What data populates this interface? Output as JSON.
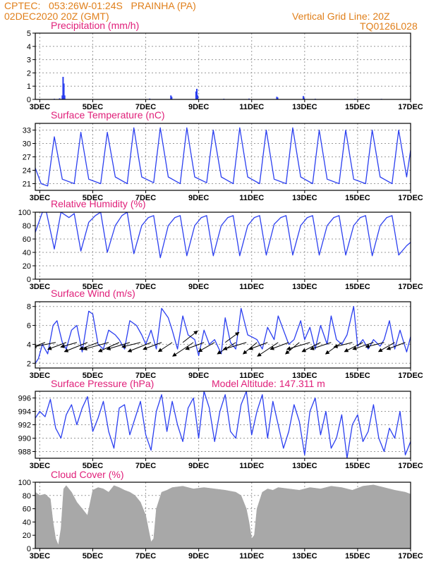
{
  "header": {
    "line1": "CPTEC:   053:26W-01:24S   PRAINHA (PA)",
    "line2": "02DEC2020 20Z (GMT)",
    "grid_note": "Vertical Grid Line: 20Z",
    "code": "TQ0126L028"
  },
  "colors": {
    "header": "#e07f1a",
    "title": "#e0207a",
    "series": "#2b3ff0",
    "cloud": "#a8a8a8",
    "wind_arrow": "#000000"
  },
  "chart_data": [
    {
      "id": "precip",
      "type": "bar",
      "title": "Precipitation (mm/h)",
      "xlabel": "",
      "ylabel": "mm/h",
      "ylim": [
        0,
        5
      ],
      "yticks": [
        0,
        1,
        2,
        3,
        4,
        5
      ],
      "xlim": [
        2.83,
        17.0
      ],
      "xticks": [
        3,
        5,
        7,
        9,
        11,
        13,
        15,
        17
      ],
      "xtick_labels": [
        "3DEC",
        "5DEC",
        "7DEC",
        "9DEC",
        "11DEC",
        "13DEC",
        "15DEC",
        "17DEC"
      ],
      "x": [
        3.55,
        3.75,
        3.85,
        3.88,
        3.91,
        3.94,
        7.15,
        7.95,
        7.98,
        8.9,
        8.93,
        8.96,
        9.95,
        10.9,
        11.95,
        11.98,
        12.95,
        12.98,
        13.4,
        14.9,
        15.9
      ],
      "values": [
        0.05,
        0.08,
        0.3,
        1.7,
        1.2,
        0.3,
        0.06,
        0.3,
        0.2,
        0.6,
        0.8,
        0.3,
        0.05,
        0.06,
        0.2,
        0.15,
        0.25,
        0.1,
        0.05,
        0.05,
        0.04
      ]
    },
    {
      "id": "temp",
      "type": "line",
      "title": "Surface Temperature (nC)",
      "xlabel": "",
      "ylabel": "nC",
      "ylim": [
        19.5,
        34.5
      ],
      "yticks": [
        21,
        24,
        27,
        30,
        33
      ],
      "xlim": [
        2.83,
        17.0
      ],
      "xticks": [
        3,
        5,
        7,
        9,
        11,
        13,
        15,
        17
      ],
      "xtick_labels": [
        "3DEC",
        "5DEC",
        "7DEC",
        "9DEC",
        "11DEC",
        "13DEC",
        "15DEC",
        "17DEC"
      ],
      "x": [
        2.83,
        3.05,
        3.3,
        3.55,
        3.85,
        4.3,
        4.55,
        4.85,
        5.3,
        5.55,
        5.85,
        6.3,
        6.55,
        6.85,
        7.3,
        7.55,
        7.85,
        8.3,
        8.55,
        8.85,
        9.3,
        9.55,
        9.85,
        10.3,
        10.55,
        10.85,
        11.3,
        11.55,
        11.85,
        12.3,
        12.55,
        12.85,
        13.3,
        13.55,
        13.85,
        14.3,
        14.55,
        14.85,
        15.3,
        15.55,
        15.85,
        16.3,
        16.55,
        16.85,
        17.0
      ],
      "values": [
        24.5,
        21.0,
        20.5,
        31.5,
        22.0,
        21.0,
        32.5,
        22.0,
        21.0,
        32.5,
        22.5,
        21.0,
        33.5,
        22.5,
        21.2,
        33.5,
        22.5,
        21.0,
        33.5,
        22.5,
        21.2,
        33.0,
        22.5,
        21.0,
        33.5,
        22.5,
        21.0,
        33.0,
        22.0,
        21.0,
        33.5,
        22.5,
        21.0,
        33.0,
        22.0,
        21.0,
        33.0,
        22.0,
        21.0,
        33.0,
        22.5,
        21.0,
        33.0,
        22.5,
        28.5
      ]
    },
    {
      "id": "rh",
      "type": "line",
      "title": "Relative Humidity (%)",
      "xlabel": "",
      "ylabel": "%",
      "ylim": [
        0,
        100
      ],
      "yticks": [
        0,
        20,
        40,
        60,
        80,
        100
      ],
      "xlim": [
        2.83,
        17.0
      ],
      "xticks": [
        3,
        5,
        7,
        9,
        11,
        13,
        15,
        17
      ],
      "xtick_labels": [
        "3DEC",
        "5DEC",
        "7DEC",
        "9DEC",
        "11DEC",
        "13DEC",
        "15DEC",
        "17DEC"
      ],
      "x": [
        2.83,
        3.1,
        3.25,
        3.55,
        3.8,
        4.1,
        4.3,
        4.55,
        4.85,
        5.1,
        5.3,
        5.55,
        5.85,
        6.1,
        6.3,
        6.55,
        6.85,
        7.1,
        7.3,
        7.55,
        7.85,
        8.1,
        8.3,
        8.55,
        8.85,
        9.1,
        9.3,
        9.55,
        9.85,
        10.1,
        10.3,
        10.55,
        10.85,
        11.1,
        11.3,
        11.55,
        11.85,
        12.1,
        12.3,
        12.55,
        12.85,
        13.1,
        13.3,
        13.55,
        13.85,
        14.1,
        14.3,
        14.55,
        14.85,
        15.1,
        15.3,
        15.55,
        15.85,
        16.1,
        16.3,
        16.55,
        16.85,
        17.0
      ],
      "values": [
        70,
        100,
        100,
        45,
        100,
        92,
        98,
        42,
        85,
        95,
        100,
        40,
        80,
        95,
        100,
        38,
        80,
        92,
        95,
        32,
        80,
        92,
        95,
        35,
        80,
        92,
        95,
        35,
        80,
        92,
        95,
        35,
        80,
        92,
        95,
        36,
        82,
        92,
        95,
        36,
        80,
        92,
        95,
        36,
        80,
        92,
        95,
        36,
        80,
        92,
        95,
        35,
        80,
        92,
        95,
        36,
        50,
        55
      ]
    },
    {
      "id": "wind",
      "type": "line",
      "title": "Surface Wind (m/s)",
      "xlabel": "",
      "ylabel": "m/s",
      "ylim": [
        1.5,
        8.5
      ],
      "yticks": [
        2,
        4,
        6,
        8
      ],
      "xlim": [
        2.83,
        17.0
      ],
      "xticks": [
        3,
        5,
        7,
        9,
        11,
        13,
        15,
        17
      ],
      "xtick_labels": [
        "3DEC",
        "5DEC",
        "7DEC",
        "9DEC",
        "11DEC",
        "13DEC",
        "15DEC",
        "17DEC"
      ],
      "x": [
        2.83,
        2.95,
        3.1,
        3.3,
        3.5,
        3.65,
        3.85,
        4.0,
        4.2,
        4.4,
        4.6,
        4.85,
        5.0,
        5.2,
        5.4,
        5.6,
        5.85,
        6.0,
        6.2,
        6.4,
        6.65,
        6.85,
        7.0,
        7.2,
        7.4,
        7.6,
        7.85,
        8.0,
        8.2,
        8.4,
        8.6,
        8.85,
        9.0,
        9.2,
        9.4,
        9.6,
        9.85,
        10.0,
        10.2,
        10.4,
        10.6,
        10.85,
        11.0,
        11.2,
        11.4,
        11.6,
        11.85,
        12.0,
        12.2,
        12.4,
        12.6,
        12.85,
        13.0,
        13.2,
        13.4,
        13.6,
        13.85,
        14.0,
        14.2,
        14.4,
        14.6,
        14.85,
        15.0,
        15.2,
        15.4,
        15.6,
        15.85,
        16.0,
        16.2,
        16.4,
        16.6,
        16.85,
        17.0
      ],
      "values": [
        2.0,
        2.5,
        4.0,
        3.0,
        6.0,
        6.5,
        4.2,
        3.5,
        5.5,
        6.0,
        3.2,
        7.5,
        7.2,
        4.0,
        3.5,
        5.5,
        5.0,
        4.5,
        3.5,
        6.5,
        6.0,
        5.0,
        4.0,
        5.5,
        3.5,
        7.8,
        6.8,
        5.5,
        3.5,
        7.0,
        5.0,
        4.5,
        2.8,
        5.5,
        4.0,
        4.5,
        3.0,
        6.8,
        4.2,
        3.5,
        7.8,
        5.0,
        4.8,
        4.5,
        3.5,
        5.8,
        4.5,
        7.0,
        5.5,
        4.0,
        4.5,
        6.5,
        4.5,
        5.8,
        3.5,
        6.0,
        4.0,
        7.0,
        4.5,
        4.0,
        5.0,
        8.0,
        3.8,
        4.5,
        3.5,
        4.5,
        3.8,
        4.5,
        6.5,
        3.5,
        5.5,
        3.2,
        4.8
      ],
      "vectors": {
        "x": [
          3.2,
          3.6,
          4.0,
          4.4,
          4.8,
          5.2,
          5.6,
          6.0,
          6.4,
          6.8,
          7.2,
          7.6,
          8.0,
          8.4,
          8.8,
          9.2,
          9.6,
          10.0,
          10.4,
          10.8,
          11.2,
          11.6,
          12.0,
          12.4,
          12.8,
          13.2,
          13.6,
          14.0,
          14.4,
          14.8,
          15.2,
          15.6,
          16.0,
          16.4,
          16.8
        ],
        "u": [
          -4,
          -5,
          -4,
          -3.5,
          -5,
          -4,
          -5.5,
          -4.5,
          -5,
          -4,
          -5,
          -4,
          -3,
          3.2,
          -4.5,
          -4,
          -3.5,
          3,
          -4,
          -5,
          -3,
          -4,
          -4.5,
          -4,
          -3,
          -5,
          -4,
          -4.5,
          -3.5,
          -4,
          -4,
          -4.5,
          -4,
          -3.5,
          -4
        ],
        "v": [
          -1.5,
          -1,
          -1.5,
          -1,
          -2,
          -1.5,
          -1.5,
          -2,
          -1.5,
          -1,
          -2,
          -1.5,
          -2,
          2.5,
          -3,
          -1.5,
          -2,
          2.2,
          -2.5,
          -1.5,
          -2.5,
          -1.5,
          -3,
          -1.5,
          -2.5,
          -1.5,
          -2,
          -1.5,
          -2.5,
          -1,
          -2,
          -1.5,
          -1,
          -2,
          -1.5
        ]
      }
    },
    {
      "id": "pressure",
      "type": "line",
      "title": "Surface Pressure (hPa)",
      "annotation": "Model Altitude:  147.311  m",
      "xlabel": "",
      "ylabel": "hPa",
      "ylim": [
        987,
        997
      ],
      "yticks": [
        988,
        990,
        992,
        994,
        996
      ],
      "xlim": [
        2.83,
        17.0
      ],
      "xticks": [
        3,
        5,
        7,
        9,
        11,
        13,
        15,
        17
      ],
      "xtick_labels": [
        "3DEC",
        "5DEC",
        "7DEC",
        "9DEC",
        "11DEC",
        "13DEC",
        "15DEC",
        "17DEC"
      ],
      "x": [
        2.83,
        3.0,
        3.2,
        3.4,
        3.6,
        3.8,
        4.0,
        4.2,
        4.4,
        4.6,
        4.8,
        5.0,
        5.2,
        5.4,
        5.6,
        5.8,
        6.0,
        6.2,
        6.4,
        6.6,
        6.8,
        7.0,
        7.2,
        7.4,
        7.6,
        7.8,
        8.0,
        8.2,
        8.4,
        8.6,
        8.8,
        9.0,
        9.2,
        9.4,
        9.6,
        9.8,
        10.0,
        10.2,
        10.4,
        10.6,
        10.8,
        11.0,
        11.2,
        11.4,
        11.6,
        11.8,
        12.0,
        12.2,
        12.4,
        12.6,
        12.8,
        13.0,
        13.2,
        13.4,
        13.6,
        13.8,
        14.0,
        14.2,
        14.4,
        14.6,
        14.8,
        15.0,
        15.2,
        15.4,
        15.6,
        15.8,
        16.0,
        16.2,
        16.4,
        16.6,
        16.8,
        17.0
      ],
      "values": [
        993.0,
        994.0,
        993.2,
        995.8,
        991.5,
        990.0,
        993.5,
        995.0,
        992.0,
        994.5,
        996.2,
        991.0,
        993.0,
        995.5,
        991.0,
        988.5,
        994.5,
        995.0,
        990.5,
        993.0,
        995.5,
        990.5,
        988.2,
        994.0,
        996.5,
        991.0,
        995.5,
        992.0,
        989.5,
        994.5,
        996.0,
        990.0,
        997.0,
        994.5,
        989.5,
        994.0,
        996.5,
        991.0,
        990.0,
        995.0,
        997.0,
        990.5,
        994.0,
        996.5,
        990.0,
        995.5,
        992.0,
        988.5,
        991.0,
        995.0,
        992.5,
        987.5,
        994.0,
        996.0,
        990.5,
        994.0,
        988.5,
        990.0,
        993.5,
        987.0,
        992.0,
        993.5,
        989.5,
        991.0,
        995.0,
        990.0,
        988.0,
        991.5,
        990.0,
        994.0,
        987.5,
        989.5
      ]
    },
    {
      "id": "cloud",
      "type": "area",
      "title": "Cloud Cover (%)",
      "xlabel": "",
      "ylabel": "%",
      "ylim": [
        0,
        100
      ],
      "yticks": [
        0,
        20,
        40,
        60,
        80,
        100
      ],
      "xlim": [
        2.83,
        17.0
      ],
      "xticks": [
        3,
        5,
        7,
        9,
        11,
        13,
        15,
        17
      ],
      "xtick_labels": [
        "3DEC",
        "5DEC",
        "7DEC",
        "9DEC",
        "11DEC",
        "13DEC",
        "15DEC",
        "17DEC"
      ],
      "x": [
        2.83,
        3.0,
        3.2,
        3.4,
        3.5,
        3.6,
        3.7,
        3.8,
        3.9,
        4.0,
        4.2,
        4.4,
        4.6,
        4.8,
        5.0,
        5.2,
        5.4,
        5.6,
        5.8,
        6.0,
        6.2,
        6.4,
        6.6,
        6.8,
        7.0,
        7.1,
        7.2,
        7.3,
        7.4,
        7.6,
        7.8,
        8.0,
        8.4,
        8.8,
        9.2,
        9.6,
        10.0,
        10.4,
        10.6,
        10.8,
        10.9,
        11.0,
        11.1,
        11.2,
        11.4,
        11.6,
        11.8,
        12.0,
        12.4,
        12.8,
        13.2,
        13.6,
        14.0,
        14.4,
        14.8,
        15.2,
        15.6,
        16.0,
        16.4,
        16.8,
        17.0
      ],
      "values": [
        85,
        80,
        82,
        75,
        40,
        15,
        5,
        30,
        90,
        95,
        85,
        70,
        60,
        50,
        88,
        92,
        90,
        85,
        95,
        92,
        88,
        85,
        80,
        70,
        50,
        30,
        10,
        15,
        60,
        85,
        88,
        92,
        94,
        90,
        92,
        90,
        88,
        85,
        80,
        60,
        40,
        15,
        20,
        60,
        85,
        90,
        88,
        92,
        90,
        88,
        92,
        90,
        94,
        92,
        88,
        94,
        96,
        92,
        88,
        85,
        82
      ]
    }
  ]
}
